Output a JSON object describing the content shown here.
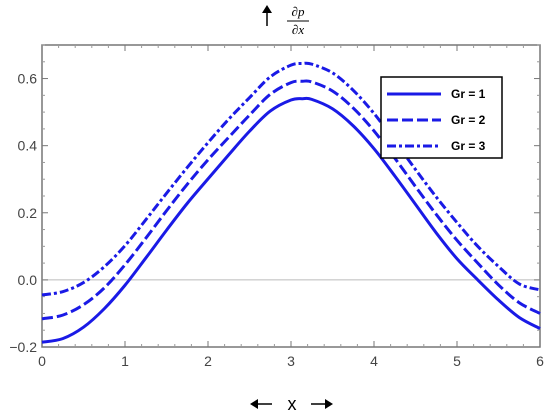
{
  "chart_data": {
    "type": "line",
    "title": "",
    "xlabel": "x",
    "ylabel_numerator": "∂p",
    "ylabel_denominator": "∂x",
    "xlim": [
      0,
      6
    ],
    "ylim": [
      -0.2,
      0.7
    ],
    "xticks": [
      "0",
      "1",
      "2",
      "3",
      "4",
      "5",
      "6"
    ],
    "yticks": [
      "−0.2",
      "0.0",
      "0.2",
      "0.4",
      "0.6"
    ],
    "grid": false,
    "legend_position": "top-right",
    "zero_line": true,
    "series": [
      {
        "name": "Gr = 1",
        "style": "solid",
        "color": "#1a1ae6",
        "x": [
          0,
          0.25,
          0.5,
          0.75,
          1,
          1.25,
          1.5,
          1.75,
          2,
          2.25,
          2.5,
          2.75,
          3,
          3.14,
          3.25,
          3.5,
          3.75,
          4,
          4.25,
          4.5,
          4.75,
          5,
          5.25,
          5.5,
          5.75,
          6
        ],
        "y": [
          -0.186,
          -0.175,
          -0.141,
          -0.086,
          -0.016,
          0.065,
          0.148,
          0.228,
          0.301,
          0.373,
          0.443,
          0.503,
          0.536,
          0.54,
          0.538,
          0.51,
          0.459,
          0.391,
          0.31,
          0.225,
          0.14,
          0.063,
          0.0,
          -0.06,
          -0.112,
          -0.145
        ]
      },
      {
        "name": "Gr = 2",
        "style": "dashed",
        "color": "#1a1ae6",
        "x": [
          0,
          0.25,
          0.5,
          0.75,
          1,
          1.25,
          1.5,
          1.75,
          2,
          2.25,
          2.5,
          2.75,
          3,
          3.14,
          3.25,
          3.5,
          3.75,
          4,
          4.25,
          4.5,
          4.75,
          5,
          5.25,
          5.5,
          5.75,
          6
        ],
        "y": [
          -0.116,
          -0.105,
          -0.074,
          -0.024,
          0.045,
          0.124,
          0.206,
          0.285,
          0.358,
          0.425,
          0.491,
          0.553,
          0.588,
          0.592,
          0.59,
          0.563,
          0.512,
          0.444,
          0.363,
          0.278,
          0.195,
          0.118,
          0.05,
          -0.015,
          -0.068,
          -0.1
        ]
      },
      {
        "name": "Gr = 3",
        "style": "dashdot",
        "color": "#1a1ae6",
        "x": [
          0,
          0.25,
          0.5,
          0.75,
          1,
          1.25,
          1.5,
          1.75,
          2,
          2.25,
          2.5,
          2.75,
          3,
          3.14,
          3.25,
          3.5,
          3.75,
          4,
          4.25,
          4.5,
          4.75,
          5,
          5.25,
          5.5,
          5.75,
          6
        ],
        "y": [
          -0.045,
          -0.035,
          -0.008,
          0.039,
          0.102,
          0.179,
          0.258,
          0.335,
          0.409,
          0.479,
          0.543,
          0.605,
          0.64,
          0.645,
          0.643,
          0.617,
          0.565,
          0.496,
          0.414,
          0.329,
          0.247,
          0.171,
          0.1,
          0.04,
          -0.012,
          -0.03
        ]
      }
    ]
  }
}
